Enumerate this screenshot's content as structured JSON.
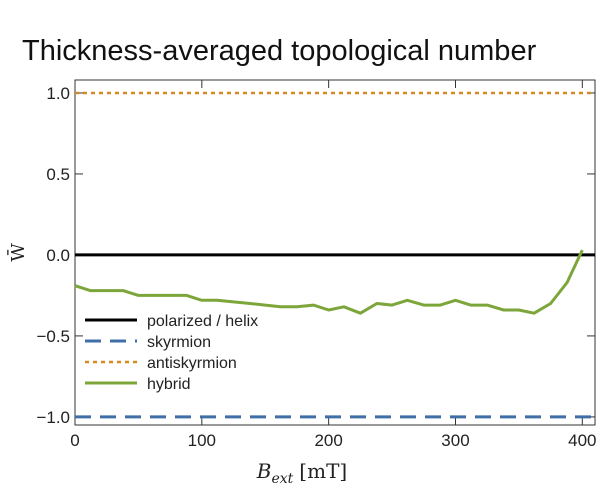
{
  "chart_data": {
    "type": "line",
    "title": "Thickness-averaged topological number",
    "xlabel": "B_ext [mT]",
    "xlabel_main": "B",
    "xlabel_sub": "ext",
    "xlabel_unit": "[mT]",
    "ylabel": "W̄",
    "xlim": [
      0,
      410
    ],
    "ylim": [
      -1.05,
      1.08
    ],
    "xticks": [
      0,
      100,
      200,
      300,
      400
    ],
    "xtick_labels": [
      "0",
      "100",
      "200",
      "300",
      "400"
    ],
    "yticks": [
      -1.0,
      -0.5,
      0.0,
      0.5,
      1.0
    ],
    "ytick_labels": [
      "−1.0",
      "−0.5",
      "0.0",
      "0.5",
      "1.0"
    ],
    "grid": false,
    "legend_position": "bottom-left",
    "series": [
      {
        "name": "polarized / helix",
        "color": "#000000",
        "style": "solid",
        "x": [
          0,
          410
        ],
        "y": [
          0.0,
          0.0
        ]
      },
      {
        "name": "skyrmion",
        "color": "#3f6fa6",
        "style": "dashed",
        "x": [
          0,
          410
        ],
        "y": [
          -1.0,
          -1.0
        ]
      },
      {
        "name": "antiskyrmion",
        "color": "#d98a1e",
        "style": "dotted",
        "x": [
          0,
          410
        ],
        "y": [
          1.0,
          1.0
        ]
      },
      {
        "name": "hybrid",
        "color": "#7ca63a",
        "style": "solid",
        "x": [
          0,
          12,
          25,
          38,
          50,
          62,
          75,
          88,
          100,
          112,
          125,
          138,
          150,
          162,
          175,
          188,
          200,
          212,
          225,
          238,
          250,
          262,
          275,
          288,
          300,
          312,
          325,
          338,
          350,
          362,
          375,
          388,
          400
        ],
        "y": [
          -0.19,
          -0.22,
          -0.22,
          -0.22,
          -0.25,
          -0.25,
          -0.25,
          -0.25,
          -0.28,
          -0.28,
          -0.29,
          -0.3,
          -0.31,
          -0.32,
          -0.32,
          -0.31,
          -0.34,
          -0.32,
          -0.36,
          -0.3,
          -0.31,
          -0.28,
          -0.31,
          -0.31,
          -0.28,
          -0.31,
          -0.31,
          -0.34,
          -0.34,
          -0.36,
          -0.3,
          -0.17,
          0.03
        ]
      }
    ]
  }
}
